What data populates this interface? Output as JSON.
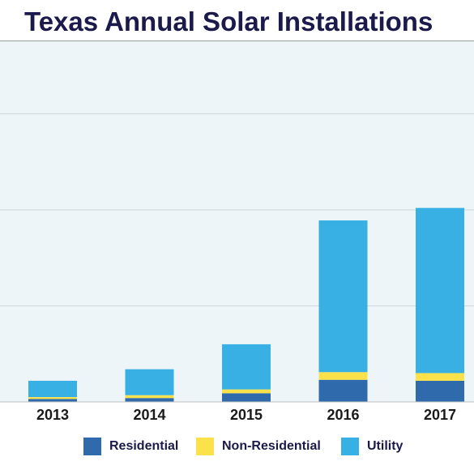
{
  "chart_data": {
    "type": "bar",
    "stacked": true,
    "title": "Texas Annual Solar Installations",
    "categories": [
      "2013",
      "2014",
      "2015",
      "2016",
      "2017"
    ],
    "series": [
      {
        "name": "Residential",
        "color": "#2e6aac",
        "values": [
          3,
          4,
          9,
          23,
          22
        ]
      },
      {
        "name": "Non-Residential",
        "color": "#fbe24a",
        "values": [
          2,
          3,
          4,
          8,
          8
        ]
      },
      {
        "name": "Utility",
        "color": "#39b0e4",
        "values": [
          17,
          27,
          47,
          158,
          172
        ]
      }
    ],
    "ylim": [
      0,
      400
    ],
    "grid": true,
    "legend_position": "bottom"
  }
}
